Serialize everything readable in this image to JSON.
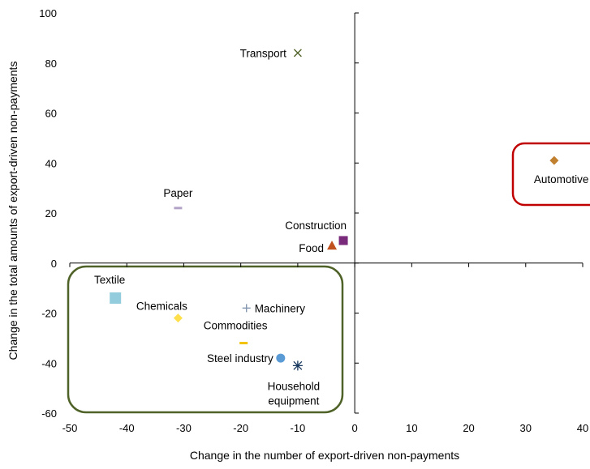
{
  "chart_data": {
    "type": "scatter",
    "title": "",
    "xlabel": "Change in the number of export-driven non-payments",
    "ylabel": "Change in the total amounts of export-driven non-payments",
    "xlim": [
      -50,
      40
    ],
    "ylim": [
      -60,
      100
    ],
    "xticks": [
      "-50",
      "-40",
      "-30",
      "-20",
      "-10",
      "0",
      "10",
      "20",
      "30",
      "40"
    ],
    "yticks": [
      "100",
      "80",
      "60",
      "40",
      "20",
      "0",
      "-20",
      "-40",
      "-60"
    ],
    "grid": false,
    "points": [
      {
        "label": "Transport",
        "x": -10,
        "y": 84,
        "marker": "x",
        "color": "#4f6228"
      },
      {
        "label": "Automotive",
        "x": 35,
        "y": 41,
        "marker": "diamond",
        "color": "#c08030"
      },
      {
        "label": "Paper",
        "x": -31,
        "y": 22,
        "marker": "dash",
        "color": "#b3a2c7"
      },
      {
        "label": "Construction",
        "x": -2,
        "y": 9,
        "marker": "square",
        "color": "#7a2a7a"
      },
      {
        "label": "Food",
        "x": -4,
        "y": 7,
        "marker": "triangle",
        "color": "#c0501e"
      },
      {
        "label": "Textile",
        "x": -42,
        "y": -14,
        "marker": "square",
        "color": "#93cddd"
      },
      {
        "label": "Chemicals",
        "x": -31,
        "y": -22,
        "marker": "diamond",
        "color": "#ffe04c"
      },
      {
        "label": "Machinery",
        "x": -19,
        "y": -18,
        "marker": "plus",
        "color": "#8497b0"
      },
      {
        "label": "Commodities",
        "x": -19.5,
        "y": -32,
        "marker": "dash",
        "color": "#f2c200"
      },
      {
        "label": "Steel industry",
        "x": -13,
        "y": -38,
        "marker": "circle",
        "color": "#5b9bd5"
      },
      {
        "label": "Household equipment",
        "x": -10,
        "y": -41,
        "marker": "asterisk",
        "color": "#17375e"
      }
    ],
    "highlight_boxes": [
      {
        "color": "#c00000"
      },
      {
        "color": "#4f6228"
      }
    ]
  }
}
